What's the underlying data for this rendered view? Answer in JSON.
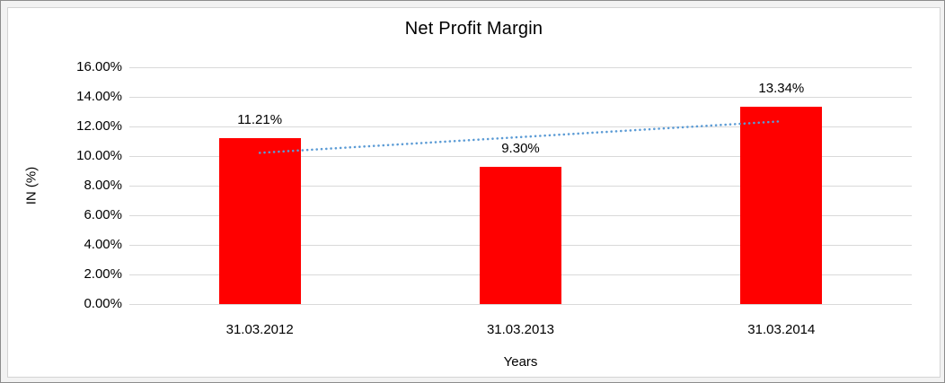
{
  "chart_data": {
    "type": "bar",
    "title": "Net Profit Margin",
    "xlabel": "Years",
    "ylabel": "IN (%)",
    "categories": [
      "31.03.2012",
      "31.03.2013",
      "31.03.2014"
    ],
    "values": [
      11.21,
      9.3,
      13.34
    ],
    "data_labels": [
      "11.21%",
      "9.30%",
      "13.34%"
    ],
    "ylim": [
      0,
      16
    ],
    "ytick_step": 2,
    "ytick_labels": [
      "0.00%",
      "2.00%",
      "4.00%",
      "6.00%",
      "8.00%",
      "10.00%",
      "12.00%",
      "14.00%",
      "16.00%"
    ],
    "grid": true,
    "legend_position": "none",
    "colors": {
      "bar": "#ff0000",
      "gridline": "#d9d9d9",
      "text": "#000000",
      "trendline": "#5b9bd5"
    },
    "trendline": {
      "type": "linear",
      "style": "dotted"
    }
  }
}
